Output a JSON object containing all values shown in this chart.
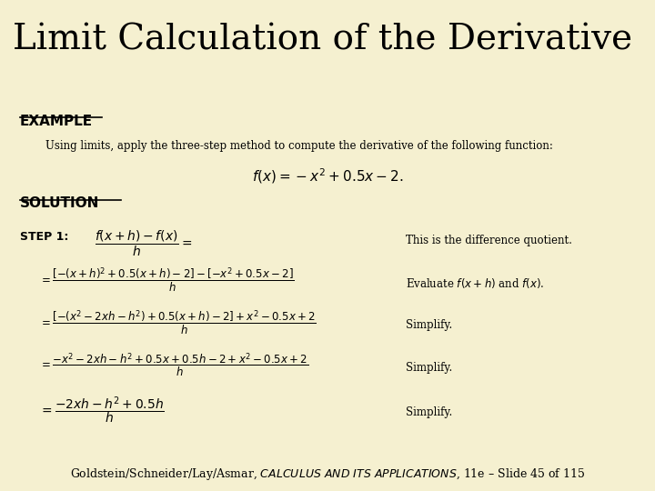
{
  "title": "Limit Calculation of the Derivative",
  "title_bg": "#f5f0d0",
  "title_color": "#000000",
  "title_fontsize": 28,
  "separator_color": "#8b0000",
  "body_bg": "#f5f0d0",
  "example_label": "EXAMPLE",
  "example_color": "#000000",
  "intro_text": "Using limits, apply the three-step method to compute the derivative of the following function:",
  "function_formula": "$f(x)=-x^2+0.5x-2.$",
  "solution_label": "SOLUTION",
  "solution_color": "#000000",
  "step1_label": "STEP 1:",
  "step1_formula": "$\\dfrac{f(x+h)-f(x)}{h}=$",
  "step1_note": "This is the difference quotient.",
  "step2_formula": "$=\\dfrac{\\left[-(x+h)^2+0.5(x+h)-2\\right]-\\left[-x^2+0.5x-2\\right]}{h}$",
  "step2_note": "Evaluate $f(x+h)$ and $f(x)$.",
  "step3_formula": "$=\\dfrac{\\left[-(x^2-2xh-h^2)+0.5(x+h)-2\\right]+x^2-0.5x+2}{h}$",
  "step3_note": "Simplify.",
  "step4_formula": "$=\\dfrac{-x^2-2xh-h^2+0.5x+0.5h-2+x^2-0.5x+2}{h}$",
  "step4_note": "Simplify.",
  "step5_formula": "$=\\dfrac{-2xh-h^2+0.5h}{h}$",
  "step5_note": "Simplify.",
  "footer_text_normal": "Goldstein/Schneider/Lay/Asmar, ",
  "footer_text_italic": "CALCULUS AND ITS APPLICATIONS",
  "footer_text_end": ", 11e – Slide 45 of 115",
  "footer_bg": "#c8c8c8",
  "footer_color": "#000000",
  "footer_fontsize": 9
}
